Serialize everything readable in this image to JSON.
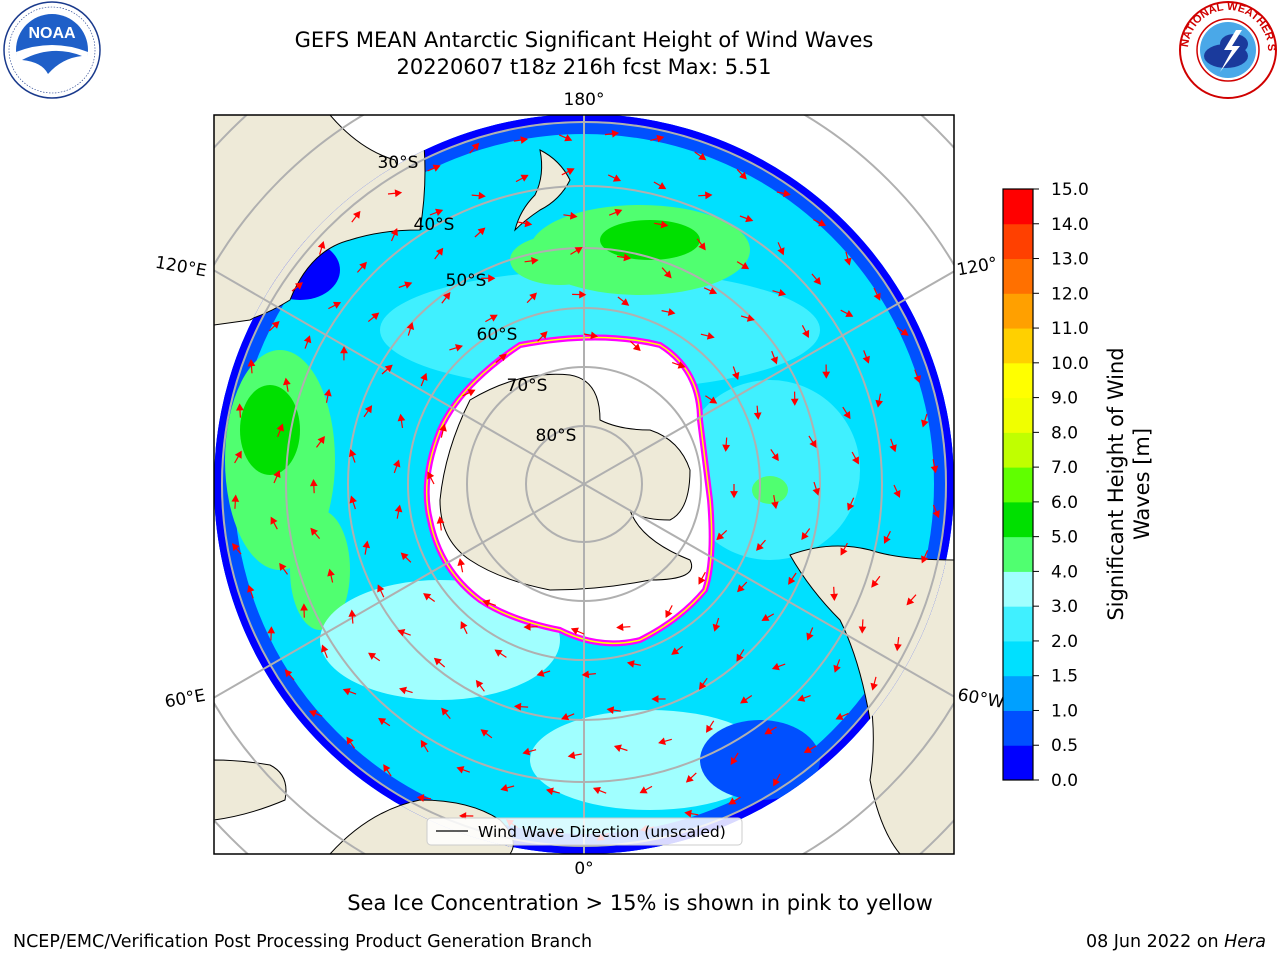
{
  "title": {
    "line1": "GEFS MEAN Antarctic Significant Height of Wind Waves",
    "line2": "20220607 t18z 216h fcst   Max: 5.51"
  },
  "map": {
    "projection": "south-polar-stereographic",
    "longitude_labels": [
      "180°",
      "120°E",
      "120°",
      "60°E",
      "60°W",
      "0°"
    ],
    "latitude_labels": [
      "30°S",
      "40°S",
      "50°S",
      "60°S",
      "70°S",
      "80°S"
    ],
    "legend_label": "Wind Wave Direction (unscaled)",
    "colors": {
      "land": "#eeead8",
      "ice_free_antarctic": "#ffffff",
      "sea_ice_edge": [
        "#ff00ff",
        "#ffff00"
      ],
      "arrow": "#ff0000",
      "grid": "#b0b0b0"
    }
  },
  "colorbar": {
    "label_line1": "Significant Height of Wind",
    "label_line2": "Waves [m]",
    "ticks": [
      "0.0",
      "0.5",
      "1.0",
      "1.5",
      "2.0",
      "3.0",
      "4.0",
      "5.0",
      "6.0",
      "7.0",
      "8.0",
      "9.0",
      "10.0",
      "11.0",
      "12.0",
      "13.0",
      "14.0",
      "15.0"
    ],
    "colors": [
      "#0000ff",
      "#0050ff",
      "#00a0ff",
      "#00e0ff",
      "#40f0ff",
      "#a0ffff",
      "#50ff70",
      "#00e000",
      "#60ff00",
      "#c0ff00",
      "#f0ff00",
      "#ffff00",
      "#ffd000",
      "#ffa000",
      "#ff7000",
      "#ff4000",
      "#ff0000"
    ]
  },
  "subtitle": "Sea Ice Concentration > 15% is shown in pink to yellow",
  "footer": {
    "left": "NCEP/EMC/Verification Post Processing Product Generation Branch",
    "right_prefix": "08 Jun 2022 on ",
    "right_machine": "Hera"
  },
  "logos": {
    "noaa_text": "NOAA",
    "nws_text": "NATIONAL WEATHER SERVICE"
  }
}
